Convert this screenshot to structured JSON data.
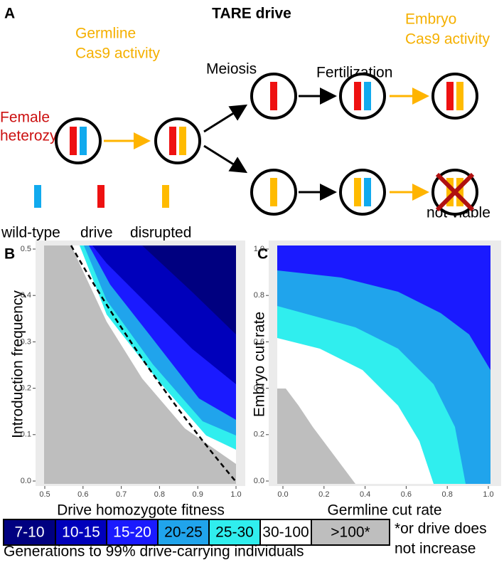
{
  "panel_a": {
    "label": "A",
    "title": "TARE drive",
    "female": [
      "Female",
      "heterozygote"
    ],
    "germline": [
      "Germline",
      "Cas9 activity"
    ],
    "meiosis": "Meiosis",
    "fertilization": "Fertilization",
    "embryo": [
      "Embryo",
      "Cas9 activity"
    ],
    "not_viable": "not viable",
    "alleles": [
      "wild-type",
      "drive",
      "disrupted"
    ]
  },
  "panel_b": {
    "label": "B",
    "x_label": "Drive homozygote fitness",
    "y_label": "Introduction frequency",
    "xlim": [
      0.5,
      1.0
    ],
    "ylim": [
      0,
      0.5
    ],
    "xticks": [
      0.5,
      0.6,
      0.7,
      0.8,
      0.9,
      {
        "value": 1,
        "label": "1.0"
      }
    ],
    "yticks": [
      {
        "value": 0,
        "label": "0.0"
      },
      0.1,
      0.2,
      0.3,
      0.4,
      0.5
    ]
  },
  "panel_c": {
    "label": "C",
    "x_label": "Germline cut rate",
    "y_label": "Embryo cut rate",
    "xlim": [
      0,
      1
    ],
    "ylim": [
      0,
      1
    ],
    "xticks": [
      {
        "value": 0,
        "label": "0.0"
      },
      0.2,
      0.4,
      0.6,
      0.8,
      {
        "value": 1,
        "label": "1.0"
      }
    ],
    "yticks": [
      {
        "value": 0,
        "label": "0.0"
      },
      0.2,
      0.4,
      0.6,
      0.8,
      {
        "value": 1,
        "label": "1.0"
      }
    ]
  },
  "legend": {
    "items": [
      {
        "label": "7-10",
        "color": "#000080"
      },
      {
        "label": "10-15",
        "color": "#0000bb"
      },
      {
        "label": "15-20",
        "color": "#1a1aff"
      },
      {
        "label": "20-25",
        "color": "#20a4ec"
      },
      {
        "label": "25-30",
        "color": "#30eeee"
      },
      {
        "label": "30-100",
        "color": "#ffffff"
      },
      {
        "label": ">100*",
        "color": "#bebebe"
      }
    ],
    "note": [
      "*or drive does",
      "not increase"
    ],
    "caption": "Generations to 99% drive-carrying individuals"
  }
}
